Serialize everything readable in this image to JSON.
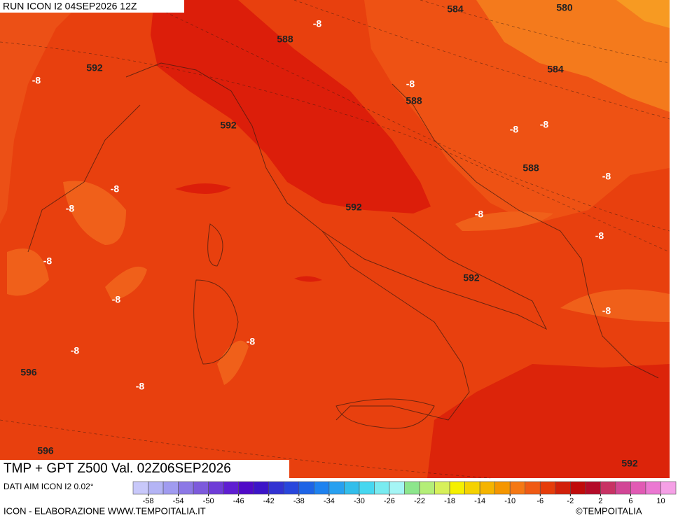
{
  "header": {
    "run": "RUN ICON I2 04SEP2026 12Z"
  },
  "contour_labels": [
    "584",
    "580",
    "588",
    "592",
    "-8",
    "-8",
    "584",
    "-8",
    "588",
    "592",
    "-8",
    "-8",
    "588",
    "-8",
    "-8",
    "-8",
    "592",
    "-8",
    "-8",
    "-8",
    "592",
    "-8",
    "-8",
    "-8",
    "-8",
    "596",
    "-8",
    "596",
    "592"
  ],
  "footer": {
    "title": "TMP + GPT Z500 Val. 02Z06SEP2026",
    "source": "DATI AIM ICON I2 0.02°",
    "credit": "ICON - ELABORAZIONE WWW.TEMPOITALIA.IT",
    "copyright": "©TEMPOITALIA"
  },
  "colorbar": {
    "range": [
      -60,
      12
    ],
    "ticks": [
      -58,
      -54,
      -50,
      -46,
      -42,
      -38,
      -34,
      -30,
      -26,
      -22,
      -18,
      -14,
      -10,
      -6,
      -2,
      2,
      6,
      10
    ],
    "colors": [
      "#c8c8fa",
      "#b4b4f5",
      "#a09bf0",
      "#8c78e6",
      "#7d5adc",
      "#6e3cd7",
      "#5f1ed2",
      "#500ac8",
      "#3c14c8",
      "#3232d2",
      "#2846dc",
      "#1e64e6",
      "#1e82f0",
      "#28a0f0",
      "#32beeb",
      "#46d7f0",
      "#78ebf0",
      "#a5f5f5",
      "#8ce68c",
      "#b4ee78",
      "#d7f05a",
      "#f5f000",
      "#f5d200",
      "#f5b400",
      "#f59600",
      "#f57814",
      "#f05a14",
      "#e63c0a",
      "#d2200a",
      "#c00a0a",
      "#b40a28",
      "#c83264",
      "#d24696",
      "#e15ab4",
      "#eb78d2",
      "#f5a0e6"
    ]
  }
}
